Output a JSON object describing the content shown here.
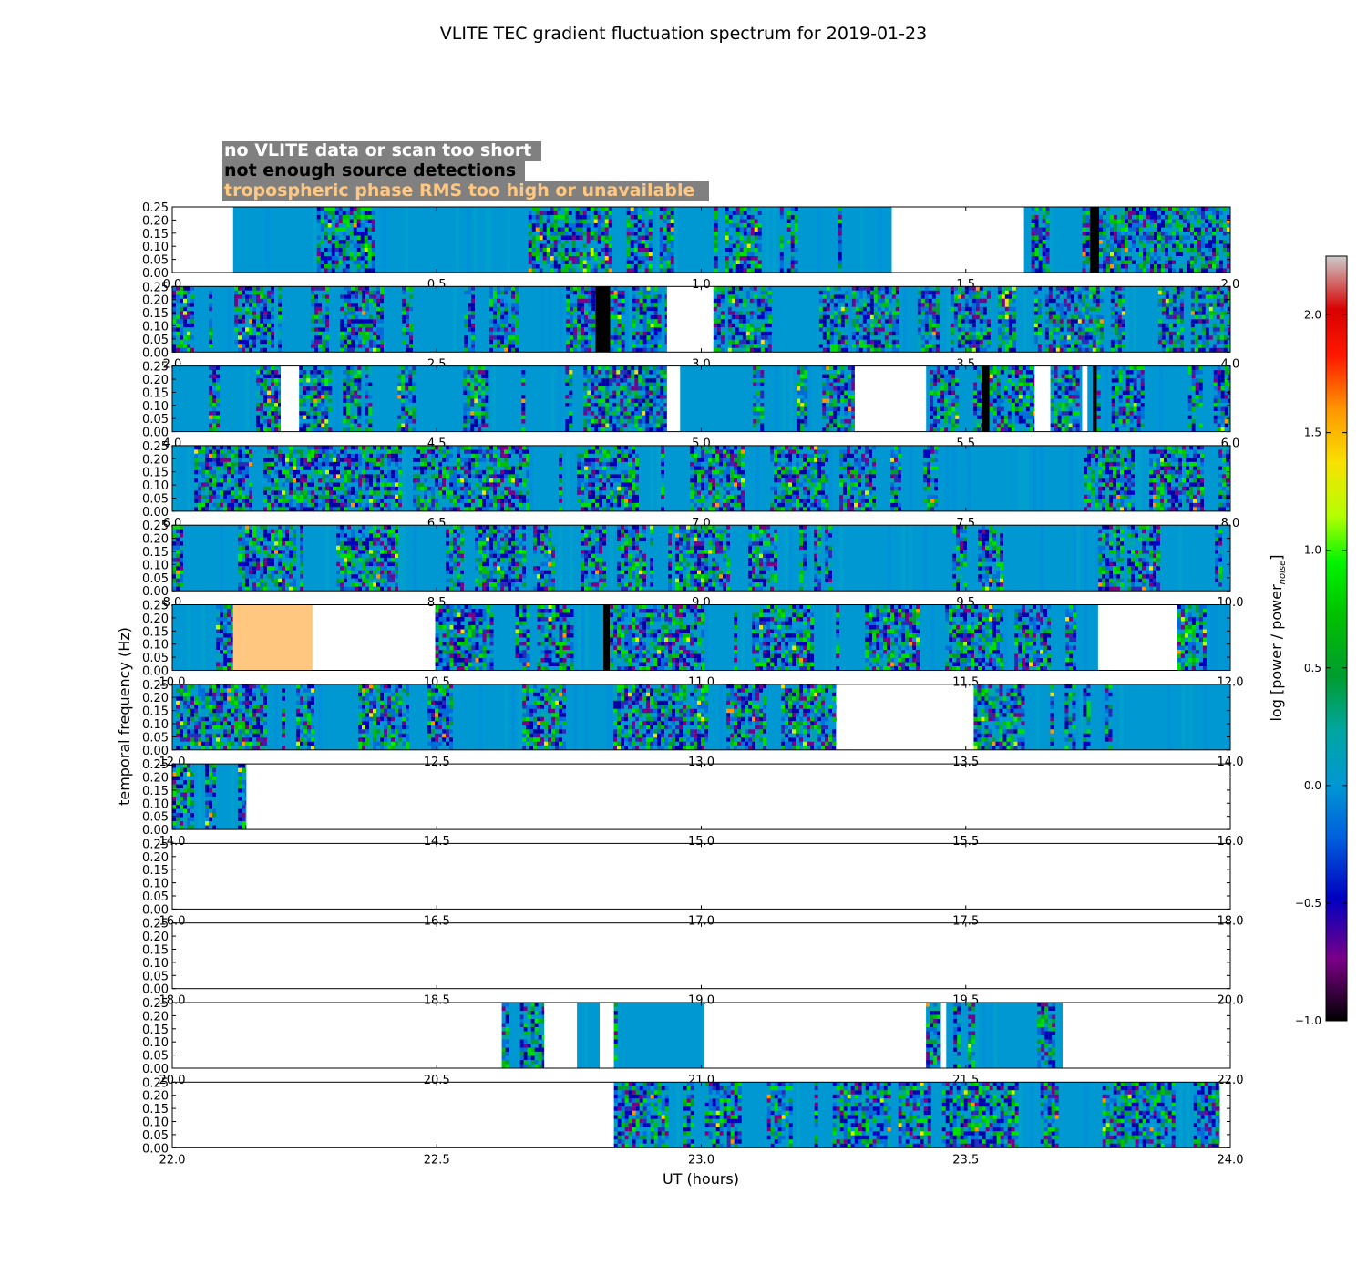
{
  "chart_data": {
    "type": "heatmap",
    "title": "VLITE TEC gradient fluctuation spectrum for 2019-01-23",
    "xlabel": "UT (hours)",
    "ylabel": "temporal frequency (Hz)",
    "colorbar_label": "log [power / power_noise]",
    "colorbar_label_main": "log [power / power",
    "colorbar_label_sub": "noise",
    "colorbar_label_end": "]",
    "colorbar_range": [
      -1.0,
      2.25
    ],
    "colorbar_ticks": [
      "−1.0",
      "−0.5",
      "0.0",
      "0.5",
      "1.0",
      "1.5",
      "2.0"
    ],
    "colorbar_tick_values": [
      -1.0,
      -0.5,
      0.0,
      0.5,
      1.0,
      1.5,
      2.0
    ],
    "colormap": "nipy_spectral",
    "ylim": [
      0,
      0.25
    ],
    "yticks": [
      "0.00",
      "0.05",
      "0.10",
      "0.15",
      "0.20",
      "0.25"
    ],
    "legend": [
      {
        "label": "no VLITE data or scan too short",
        "color": "#ffffff"
      },
      {
        "label": "not enough source detections",
        "color": "#000000"
      },
      {
        "label": "tropospheric phase RMS too high or unavailable",
        "color": "#ffc77f"
      }
    ],
    "legend_box_color": "#808080",
    "panels": [
      {
        "xlim": [
          0,
          2
        ],
        "xticks": [
          "0.0",
          "0.5",
          "1.0",
          "1.5",
          "2.0"
        ],
        "segments": [
          {
            "type": "data",
            "start": 0.115,
            "end": 1.36
          },
          {
            "type": "data",
            "start": 1.61,
            "end": 1.735
          },
          {
            "type": "nodet",
            "start": 1.735,
            "end": 1.752
          },
          {
            "type": "data",
            "start": 1.752,
            "end": 2.0
          }
        ]
      },
      {
        "xlim": [
          2,
          4
        ],
        "xticks": [
          "2.0",
          "2.5",
          "3.0",
          "3.5",
          "4.0"
        ],
        "segments": [
          {
            "type": "data",
            "start": 2.0,
            "end": 2.8
          },
          {
            "type": "nodet",
            "start": 2.8,
            "end": 2.828
          },
          {
            "type": "data",
            "start": 2.828,
            "end": 2.935
          },
          {
            "type": "data",
            "start": 3.023,
            "end": 4.0
          }
        ]
      },
      {
        "xlim": [
          4,
          6
        ],
        "xticks": [
          "4.0",
          "4.5",
          "5.0",
          "5.5",
          "6.0"
        ],
        "segments": [
          {
            "type": "data",
            "start": 4.0,
            "end": 4.205
          },
          {
            "type": "data",
            "start": 4.24,
            "end": 4.935
          },
          {
            "type": "data",
            "start": 4.96,
            "end": 5.29
          },
          {
            "type": "data",
            "start": 5.425,
            "end": 5.53
          },
          {
            "type": "nodet",
            "start": 5.53,
            "end": 5.545
          },
          {
            "type": "data",
            "start": 5.545,
            "end": 5.63
          },
          {
            "type": "data",
            "start": 5.66,
            "end": 5.72
          },
          {
            "type": "data",
            "start": 5.73,
            "end": 5.74
          },
          {
            "type": "nodet",
            "start": 5.74,
            "end": 5.748
          },
          {
            "type": "data",
            "start": 5.748,
            "end": 6.0
          }
        ]
      },
      {
        "xlim": [
          6,
          8
        ],
        "xticks": [
          "6.0",
          "6.5",
          "7.0",
          "7.5",
          "8.0"
        ],
        "segments": [
          {
            "type": "data",
            "start": 6.0,
            "end": 8.0
          }
        ]
      },
      {
        "xlim": [
          8,
          10
        ],
        "xticks": [
          "8.0",
          "8.5",
          "9.0",
          "9.5",
          "10.0"
        ],
        "segments": [
          {
            "type": "data",
            "start": 8.0,
            "end": 10.0
          }
        ]
      },
      {
        "xlim": [
          10,
          12
        ],
        "xticks": [
          "10.0",
          "10.5",
          "11.0",
          "11.5",
          "12.0"
        ],
        "segments": [
          {
            "type": "data",
            "start": 10.0,
            "end": 10.115
          },
          {
            "type": "tropo",
            "start": 10.115,
            "end": 10.265
          },
          {
            "type": "data",
            "start": 10.497,
            "end": 10.815
          },
          {
            "type": "nodet",
            "start": 10.815,
            "end": 10.827
          },
          {
            "type": "data",
            "start": 10.827,
            "end": 11.75
          },
          {
            "type": "data",
            "start": 11.9,
            "end": 12.0
          }
        ]
      },
      {
        "xlim": [
          12,
          14
        ],
        "xticks": [
          "12.0",
          "12.5",
          "13.0",
          "13.5",
          "14.0"
        ],
        "segments": [
          {
            "type": "data",
            "start": 12.0,
            "end": 13.255
          },
          {
            "type": "data",
            "start": 13.515,
            "end": 14.0
          }
        ]
      },
      {
        "xlim": [
          14,
          16
        ],
        "xticks": [
          "14.0",
          "14.5",
          "15.0",
          "15.5",
          "16.0"
        ],
        "segments": [
          {
            "type": "data",
            "start": 14.0,
            "end": 14.14
          }
        ]
      },
      {
        "xlim": [
          16,
          18
        ],
        "xticks": [
          "16.0",
          "16.5",
          "17.0",
          "17.5",
          "18.0"
        ],
        "segments": []
      },
      {
        "xlim": [
          18,
          20
        ],
        "xticks": [
          "18.0",
          "18.5",
          "19.0",
          "19.5",
          "20.0"
        ],
        "segments": []
      },
      {
        "xlim": [
          20,
          22
        ],
        "xticks": [
          "20.0",
          "20.5",
          "21.0",
          "21.5",
          "22.0"
        ],
        "segments": [
          {
            "type": "data",
            "start": 20.623,
            "end": 20.703
          },
          {
            "type": "data",
            "start": 20.765,
            "end": 20.808
          },
          {
            "type": "data",
            "start": 20.835,
            "end": 21.005
          },
          {
            "type": "data",
            "start": 21.425,
            "end": 21.453
          },
          {
            "type": "data",
            "start": 21.463,
            "end": 21.683
          }
        ]
      },
      {
        "xlim": [
          22,
          24
        ],
        "xticks": [
          "22.0",
          "22.5",
          "23.0",
          "23.5",
          "24.0"
        ],
        "segments": [
          {
            "type": "data",
            "start": 22.835,
            "end": 23.98
          }
        ]
      }
    ]
  }
}
